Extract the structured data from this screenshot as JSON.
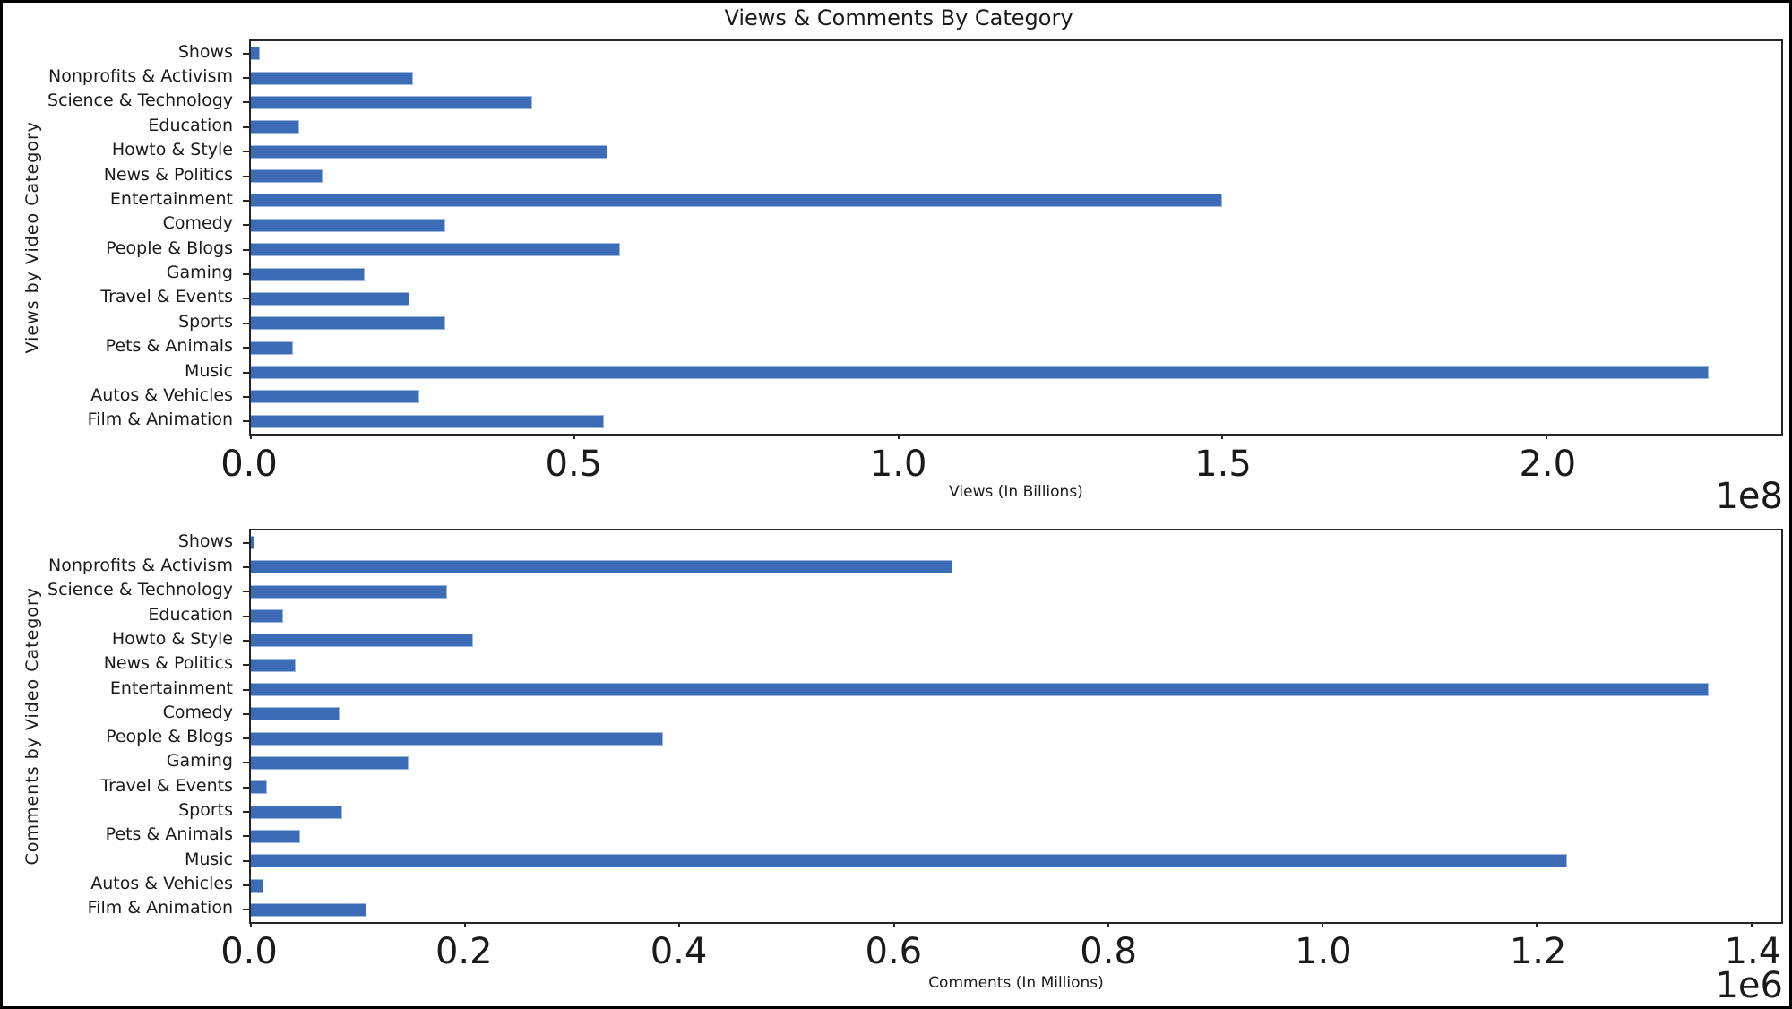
{
  "title": "Views & Comments By Category",
  "colors": {
    "bar_fill": "#3c6cb5",
    "bar_edge": "#9db8e0",
    "spine": "#262626",
    "text": "#1a1a1a",
    "background": "#ffffff"
  },
  "chart_data": [
    {
      "type": "bar",
      "orientation": "horizontal",
      "ylabel": "Views by Video Category",
      "xlabel": "Views (In Billions)",
      "offset_text": "1e8",
      "unit_scale": 100000000,
      "xmax_units": 2.3625,
      "xlim": [
        0,
        236250000
      ],
      "grid": false,
      "categories": [
        "Shows",
        "Nonprofits & Activism",
        "Science & Technology",
        "Education",
        "Howto & Style",
        "News & Politics",
        "Entertainment",
        "Comedy",
        "People & Blogs",
        "Gaming",
        "Travel & Events",
        "Sports",
        "Pets & Animals",
        "Music",
        "Autos & Vehicles",
        "Film & Animation"
      ],
      "values": [
        1400000,
        25000000,
        43500000,
        7500000,
        55000000,
        11000000,
        150000000,
        30000000,
        57000000,
        17500000,
        24500000,
        30000000,
        6500000,
        225000000,
        26000000,
        54500000
      ],
      "xticks": [
        0,
        0.5,
        1.0,
        1.5,
        2.0
      ],
      "xtick_labels": [
        "0.0",
        "0.5",
        "1.0",
        "1.5",
        "2.0"
      ]
    },
    {
      "type": "bar",
      "orientation": "horizontal",
      "ylabel": "Comments by Video Category",
      "xlabel": "Comments (In Millions)",
      "offset_text": "1e6",
      "unit_scale": 1000000,
      "xmax_units": 1.428,
      "xlim": [
        0,
        1428000
      ],
      "grid": false,
      "categories": [
        "Shows",
        "Nonprofits & Activism",
        "Science & Technology",
        "Education",
        "Howto & Style",
        "News & Politics",
        "Entertainment",
        "Comedy",
        "People & Blogs",
        "Gaming",
        "Travel & Events",
        "Sports",
        "Pets & Animals",
        "Music",
        "Autos & Vehicles",
        "Film & Animation"
      ],
      "values": [
        3000,
        655000,
        183000,
        30000,
        207000,
        42000,
        1360000,
        83000,
        385000,
        147000,
        15000,
        85000,
        46000,
        1228000,
        12000,
        108000
      ],
      "xticks": [
        0,
        0.2,
        0.4,
        0.6,
        0.8,
        1.0,
        1.2,
        1.4
      ],
      "xtick_labels": [
        "0.0",
        "0.2",
        "0.4",
        "0.6",
        "0.8",
        "1.0",
        "1.2",
        "1.4"
      ]
    }
  ]
}
